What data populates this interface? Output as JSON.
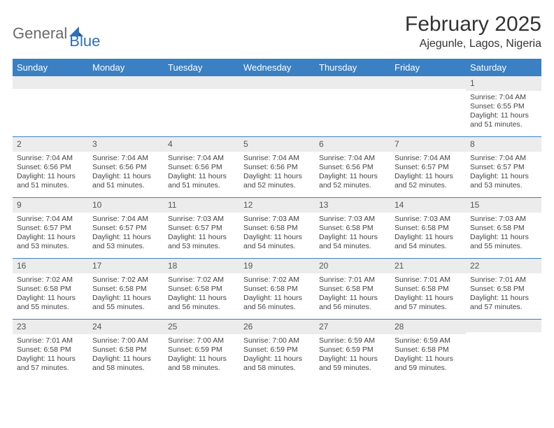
{
  "logo": {
    "general": "General",
    "blue": "Blue"
  },
  "title": "February 2025",
  "location": "Ajegunle, Lagos, Nigeria",
  "colors": {
    "header_bar": "#3a80c3",
    "header_text": "#ffffff",
    "week_border": "#3a80c3",
    "daynum_bg": "#ececec",
    "text": "#333333",
    "logo_gray": "#6a6a6a",
    "logo_blue": "#2f71b8"
  },
  "day_names": [
    "Sunday",
    "Monday",
    "Tuesday",
    "Wednesday",
    "Thursday",
    "Friday",
    "Saturday"
  ],
  "labels": {
    "sunrise": "Sunrise:",
    "sunset": "Sunset:",
    "daylight": "Daylight:"
  },
  "weeks": [
    [
      {
        "n": "",
        "sunrise": "",
        "sunset": "",
        "daylight": ""
      },
      {
        "n": "",
        "sunrise": "",
        "sunset": "",
        "daylight": ""
      },
      {
        "n": "",
        "sunrise": "",
        "sunset": "",
        "daylight": ""
      },
      {
        "n": "",
        "sunrise": "",
        "sunset": "",
        "daylight": ""
      },
      {
        "n": "",
        "sunrise": "",
        "sunset": "",
        "daylight": ""
      },
      {
        "n": "",
        "sunrise": "",
        "sunset": "",
        "daylight": ""
      },
      {
        "n": "1",
        "sunrise": "7:04 AM",
        "sunset": "6:55 PM",
        "daylight": "11 hours and 51 minutes."
      }
    ],
    [
      {
        "n": "2",
        "sunrise": "7:04 AM",
        "sunset": "6:56 PM",
        "daylight": "11 hours and 51 minutes."
      },
      {
        "n": "3",
        "sunrise": "7:04 AM",
        "sunset": "6:56 PM",
        "daylight": "11 hours and 51 minutes."
      },
      {
        "n": "4",
        "sunrise": "7:04 AM",
        "sunset": "6:56 PM",
        "daylight": "11 hours and 51 minutes."
      },
      {
        "n": "5",
        "sunrise": "7:04 AM",
        "sunset": "6:56 PM",
        "daylight": "11 hours and 52 minutes."
      },
      {
        "n": "6",
        "sunrise": "7:04 AM",
        "sunset": "6:56 PM",
        "daylight": "11 hours and 52 minutes."
      },
      {
        "n": "7",
        "sunrise": "7:04 AM",
        "sunset": "6:57 PM",
        "daylight": "11 hours and 52 minutes."
      },
      {
        "n": "8",
        "sunrise": "7:04 AM",
        "sunset": "6:57 PM",
        "daylight": "11 hours and 53 minutes."
      }
    ],
    [
      {
        "n": "9",
        "sunrise": "7:04 AM",
        "sunset": "6:57 PM",
        "daylight": "11 hours and 53 minutes."
      },
      {
        "n": "10",
        "sunrise": "7:04 AM",
        "sunset": "6:57 PM",
        "daylight": "11 hours and 53 minutes."
      },
      {
        "n": "11",
        "sunrise": "7:03 AM",
        "sunset": "6:57 PM",
        "daylight": "11 hours and 53 minutes."
      },
      {
        "n": "12",
        "sunrise": "7:03 AM",
        "sunset": "6:58 PM",
        "daylight": "11 hours and 54 minutes."
      },
      {
        "n": "13",
        "sunrise": "7:03 AM",
        "sunset": "6:58 PM",
        "daylight": "11 hours and 54 minutes."
      },
      {
        "n": "14",
        "sunrise": "7:03 AM",
        "sunset": "6:58 PM",
        "daylight": "11 hours and 54 minutes."
      },
      {
        "n": "15",
        "sunrise": "7:03 AM",
        "sunset": "6:58 PM",
        "daylight": "11 hours and 55 minutes."
      }
    ],
    [
      {
        "n": "16",
        "sunrise": "7:02 AM",
        "sunset": "6:58 PM",
        "daylight": "11 hours and 55 minutes."
      },
      {
        "n": "17",
        "sunrise": "7:02 AM",
        "sunset": "6:58 PM",
        "daylight": "11 hours and 55 minutes."
      },
      {
        "n": "18",
        "sunrise": "7:02 AM",
        "sunset": "6:58 PM",
        "daylight": "11 hours and 56 minutes."
      },
      {
        "n": "19",
        "sunrise": "7:02 AM",
        "sunset": "6:58 PM",
        "daylight": "11 hours and 56 minutes."
      },
      {
        "n": "20",
        "sunrise": "7:01 AM",
        "sunset": "6:58 PM",
        "daylight": "11 hours and 56 minutes."
      },
      {
        "n": "21",
        "sunrise": "7:01 AM",
        "sunset": "6:58 PM",
        "daylight": "11 hours and 57 minutes."
      },
      {
        "n": "22",
        "sunrise": "7:01 AM",
        "sunset": "6:58 PM",
        "daylight": "11 hours and 57 minutes."
      }
    ],
    [
      {
        "n": "23",
        "sunrise": "7:01 AM",
        "sunset": "6:58 PM",
        "daylight": "11 hours and 57 minutes."
      },
      {
        "n": "24",
        "sunrise": "7:00 AM",
        "sunset": "6:58 PM",
        "daylight": "11 hours and 58 minutes."
      },
      {
        "n": "25",
        "sunrise": "7:00 AM",
        "sunset": "6:59 PM",
        "daylight": "11 hours and 58 minutes."
      },
      {
        "n": "26",
        "sunrise": "7:00 AM",
        "sunset": "6:59 PM",
        "daylight": "11 hours and 58 minutes."
      },
      {
        "n": "27",
        "sunrise": "6:59 AM",
        "sunset": "6:59 PM",
        "daylight": "11 hours and 59 minutes."
      },
      {
        "n": "28",
        "sunrise": "6:59 AM",
        "sunset": "6:58 PM",
        "daylight": "11 hours and 59 minutes."
      },
      {
        "n": "",
        "sunrise": "",
        "sunset": "",
        "daylight": ""
      }
    ]
  ]
}
